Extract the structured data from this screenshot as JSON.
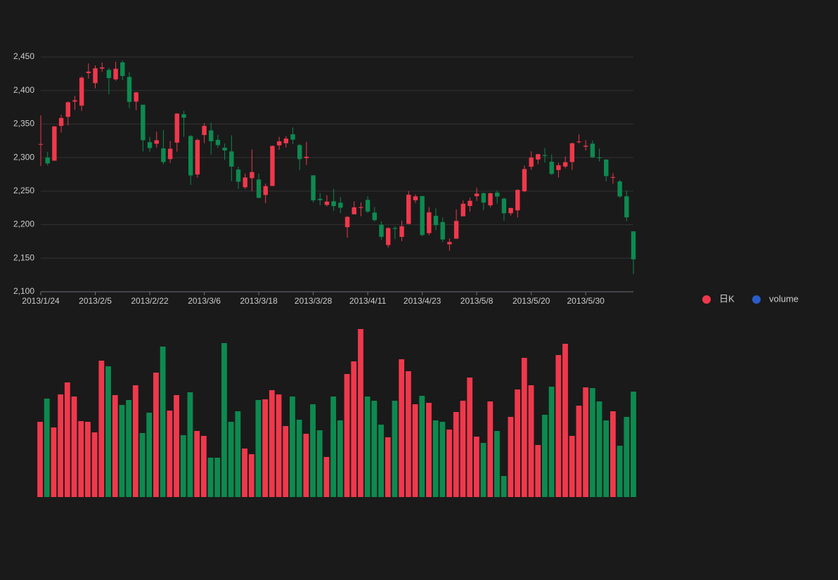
{
  "chart_data": [
    {
      "type": "candlestick",
      "categories": [
        "2013/1/24",
        null,
        null,
        null,
        null,
        null,
        null,
        null,
        "2013/2/5",
        null,
        null,
        null,
        null,
        null,
        null,
        null,
        "2013/2/22",
        null,
        null,
        null,
        null,
        null,
        null,
        null,
        "2013/3/6",
        null,
        null,
        null,
        null,
        null,
        null,
        null,
        "2013/3/18",
        null,
        null,
        null,
        null,
        null,
        null,
        null,
        "2013/3/28",
        null,
        null,
        null,
        null,
        null,
        null,
        null,
        "2013/4/11",
        null,
        null,
        null,
        null,
        null,
        null,
        null,
        "2013/4/23",
        null,
        null,
        null,
        null,
        null,
        null,
        null,
        "2013/5/8",
        null,
        null,
        null,
        null,
        null,
        null,
        null,
        "2013/5/20",
        null,
        null,
        null,
        null,
        null,
        null,
        null,
        "2013/5/30",
        null,
        null,
        null,
        null,
        null,
        null,
        null
      ],
      "series": [
        {
          "name": "日K",
          "up_color": "#f0384c",
          "down_color": "#0d8a50",
          "open": [
            2320.26,
            2300,
            2295.35,
            2347.22,
            2360.75,
            2383.43,
            2377.41,
            2425.92,
            2411,
            2432.68,
            2430.69,
            2416.62,
            2441.91,
            2420.26,
            2383.49,
            2378.82,
            2322.94,
            2320.62,
            2313.74,
            2297.77,
            2322.32,
            2364.54,
            2332.08,
            2274.81,
            2333.61,
            2340.44,
            2326.42,
            2314.68,
            2309.16,
            2282.17,
            2255.77,
            2269.31,
            2267.29,
            2244.26,
            2257.74,
            2318.21,
            2321.4,
            2334.74,
            2318.58,
            2299.38,
            2273.55,
            2238.49,
            2229.46,
            2234.9,
            2232.69,
            2196.24,
            2215.47,
            2224.93,
            2236.98,
            2218.09,
            2199.91,
            2169.63,
            2195.03,
            2181.82,
            2201.12,
            2236.4,
            2242.62,
            2187.35,
            2213.19,
            2203.89,
            2170.78,
            2179.05,
            2212.5,
            2227.86,
            2242.39,
            2246.96,
            2228.82,
            2247.68,
            2238.9,
            2217.09,
            2221.34,
            2249.81,
            2286.33,
            2297.11,
            2303.75,
            2293.81,
            2281.45,
            2286.66,
            2293.4,
            2323.54,
            2316.25,
            2320.74,
            2300.21,
            2297.1,
            2270.71,
            2264.43,
            2242.26,
            2190.1
          ],
          "close": [
            2320.26,
            2291.3,
            2346.5,
            2358.98,
            2382.48,
            2385.42,
            2419.02,
            2428.15,
            2433.13,
            2434.48,
            2418.53,
            2432.4,
            2421.56,
            2382.91,
            2397.18,
            2325.95,
            2314.16,
            2325.82,
            2293.34,
            2313.22,
            2365.59,
            2359.51,
            2273.4,
            2326.31,
            2347.18,
            2324.29,
            2318.61,
            2310.59,
            2286.6,
            2263.97,
            2270.28,
            2278.4,
            2240.02,
            2257.43,
            2317.37,
            2324.24,
            2328.28,
            2326.72,
            2297.67,
            2301.26,
            2236.3,
            2236.62,
            2234.4,
            2227.74,
            2225.29,
            2211.59,
            2225.77,
            2226.13,
            2219.55,
            2206.78,
            2181.94,
            2194.85,
            2193.8,
            2197.6,
            2244.64,
            2242.17,
            2184.54,
            2218.32,
            2199.31,
            2177.91,
            2174.12,
            2205.5,
            2231.17,
            2235.57,
            2246.3,
            2232.97,
            2246.83,
            2241.92,
            2217.01,
            2224.8,
            2251.81,
            2282.87,
            2299.99,
            2305.11,
            2302.4,
            2275.67,
            2288.53,
            2293.08,
            2321.32,
            2324.02,
            2317.75,
            2300.59,
            2299.25,
            2272.42,
            2270.93,
            2242.11,
            2210.9,
            2148.35
          ],
          "low": [
            2287.3,
            2288.26,
            2295.35,
            2337.35,
            2347.89,
            2371.23,
            2369.57,
            2417.58,
            2403.3,
            2427.7,
            2394.22,
            2414.4,
            2415.43,
            2373.53,
            2370.61,
            2309.17,
            2308.76,
            2315.01,
            2289.89,
            2292.03,
            2308.92,
            2330.86,
            2259.25,
            2270.1,
            2321.6,
            2304.27,
            2314.59,
            2296.58,
            2264.83,
            2253.25,
            2253.31,
            2250,
            2239.21,
            2232.02,
            2257.42,
            2311.6,
            2314.97,
            2319.91,
            2281.12,
            2289,
            2232.91,
            2228.81,
            2227.31,
            2220.44,
            2217.25,
            2180.67,
            2215.47,
            2212.56,
            2217.26,
            2204.44,
            2177.39,
            2165.78,
            2178.47,
            2175.44,
            2200.58,
            2232.26,
            2182.81,
            2184.11,
            2191.85,
            2173.86,
            2161.14,
            2179.05,
            2212.5,
            2219.44,
            2235.42,
            2221.38,
            2225.81,
            2231.36,
            2205.87,
            2213.58,
            2210.77,
            2248.41,
            2281.9,
            2290.12,
            2292.43,
            2274.1,
            2270.25,
            2283.94,
            2281.47,
            2321.17,
            2310.49,
            2299.37,
            2294.11,
            2264.76,
            2260.87,
            2240.07,
            2205.07,
            2126.22
          ],
          "high": [
            2362.94,
            2308.38,
            2346.92,
            2363.8,
            2383.76,
            2391.82,
            2421.15,
            2440.38,
            2437.42,
            2441.73,
            2433.89,
            2443.03,
            2444.8,
            2427.07,
            2397.94,
            2378.82,
            2330.88,
            2338.78,
            2340.71,
            2324.63,
            2366.16,
            2369.65,
            2333.54,
            2328.14,
            2351.44,
            2352.02,
            2333.67,
            2320.96,
            2333.29,
            2286.33,
            2276.22,
            2312.08,
            2276.05,
            2261.31,
            2317.86,
            2330.81,
            2332,
            2344.89,
            2319.99,
            2323.48,
            2273.55,
            2246.87,
            2243.95,
            2253.42,
            2241.34,
            2212.59,
            2234.73,
            2233.04,
            2242.48,
            2226.26,
            2204.99,
            2196.43,
            2197.51,
            2206.03,
            2250.11,
            2245.12,
            2242.62,
            2226.12,
            2224.63,
            2210.58,
            2179.65,
            2222.81,
            2236.07,
            2240.26,
            2255.21,
            2247.86,
            2247.67,
            2250.85,
            2239.93,
            2225.19,
            2252.87,
            2288.09,
            2309.39,
            2305.3,
            2314.18,
            2304.95,
            2292.59,
            2301.7,
            2322.1,
            2334.33,
            2325.72,
            2325.53,
            2313.43,
            2297.1,
            2276.86,
            2266.69,
            2250.63,
            2190.1
          ]
        }
      ],
      "ylim": [
        2100,
        2450
      ],
      "yticks": [
        {
          "value": 2100,
          "label": "2,100"
        },
        {
          "value": 2150,
          "label": "2,150"
        },
        {
          "value": 2200,
          "label": "2,200"
        },
        {
          "value": 2250,
          "label": "2,250"
        },
        {
          "value": 2300,
          "label": "2,300"
        },
        {
          "value": 2350,
          "label": "2,350"
        },
        {
          "value": 2400,
          "label": "2,400"
        },
        {
          "value": 2450,
          "label": "2,450"
        }
      ],
      "grid": true
    },
    {
      "type": "bar",
      "series": [
        {
          "name": "volume",
          "color": "#2b5cc8",
          "values": [
            107,
            140,
            99,
            146,
            163,
            143,
            108,
            107,
            92,
            194,
            186,
            145,
            131,
            138,
            159,
            91,
            120,
            177,
            214,
            123,
            145,
            88,
            149,
            94,
            87,
            56,
            56,
            219,
            107,
            122,
            69,
            61,
            138,
            139,
            152,
            146,
            101,
            143,
            110,
            90,
            132,
            95,
            57,
            143,
            109,
            175,
            193,
            239,
            143,
            137,
            103,
            85,
            137,
            196,
            179,
            132,
            144,
            134,
            109,
            107,
            96,
            121,
            137,
            170,
            86,
            77,
            136,
            94,
            30,
            114,
            153,
            198,
            159,
            74,
            117,
            157,
            202,
            218,
            87,
            130,
            156,
            155,
            136,
            109,
            122,
            73,
            114,
            150
          ]
        }
      ],
      "ylim": [
        0,
        250
      ]
    }
  ]
}
